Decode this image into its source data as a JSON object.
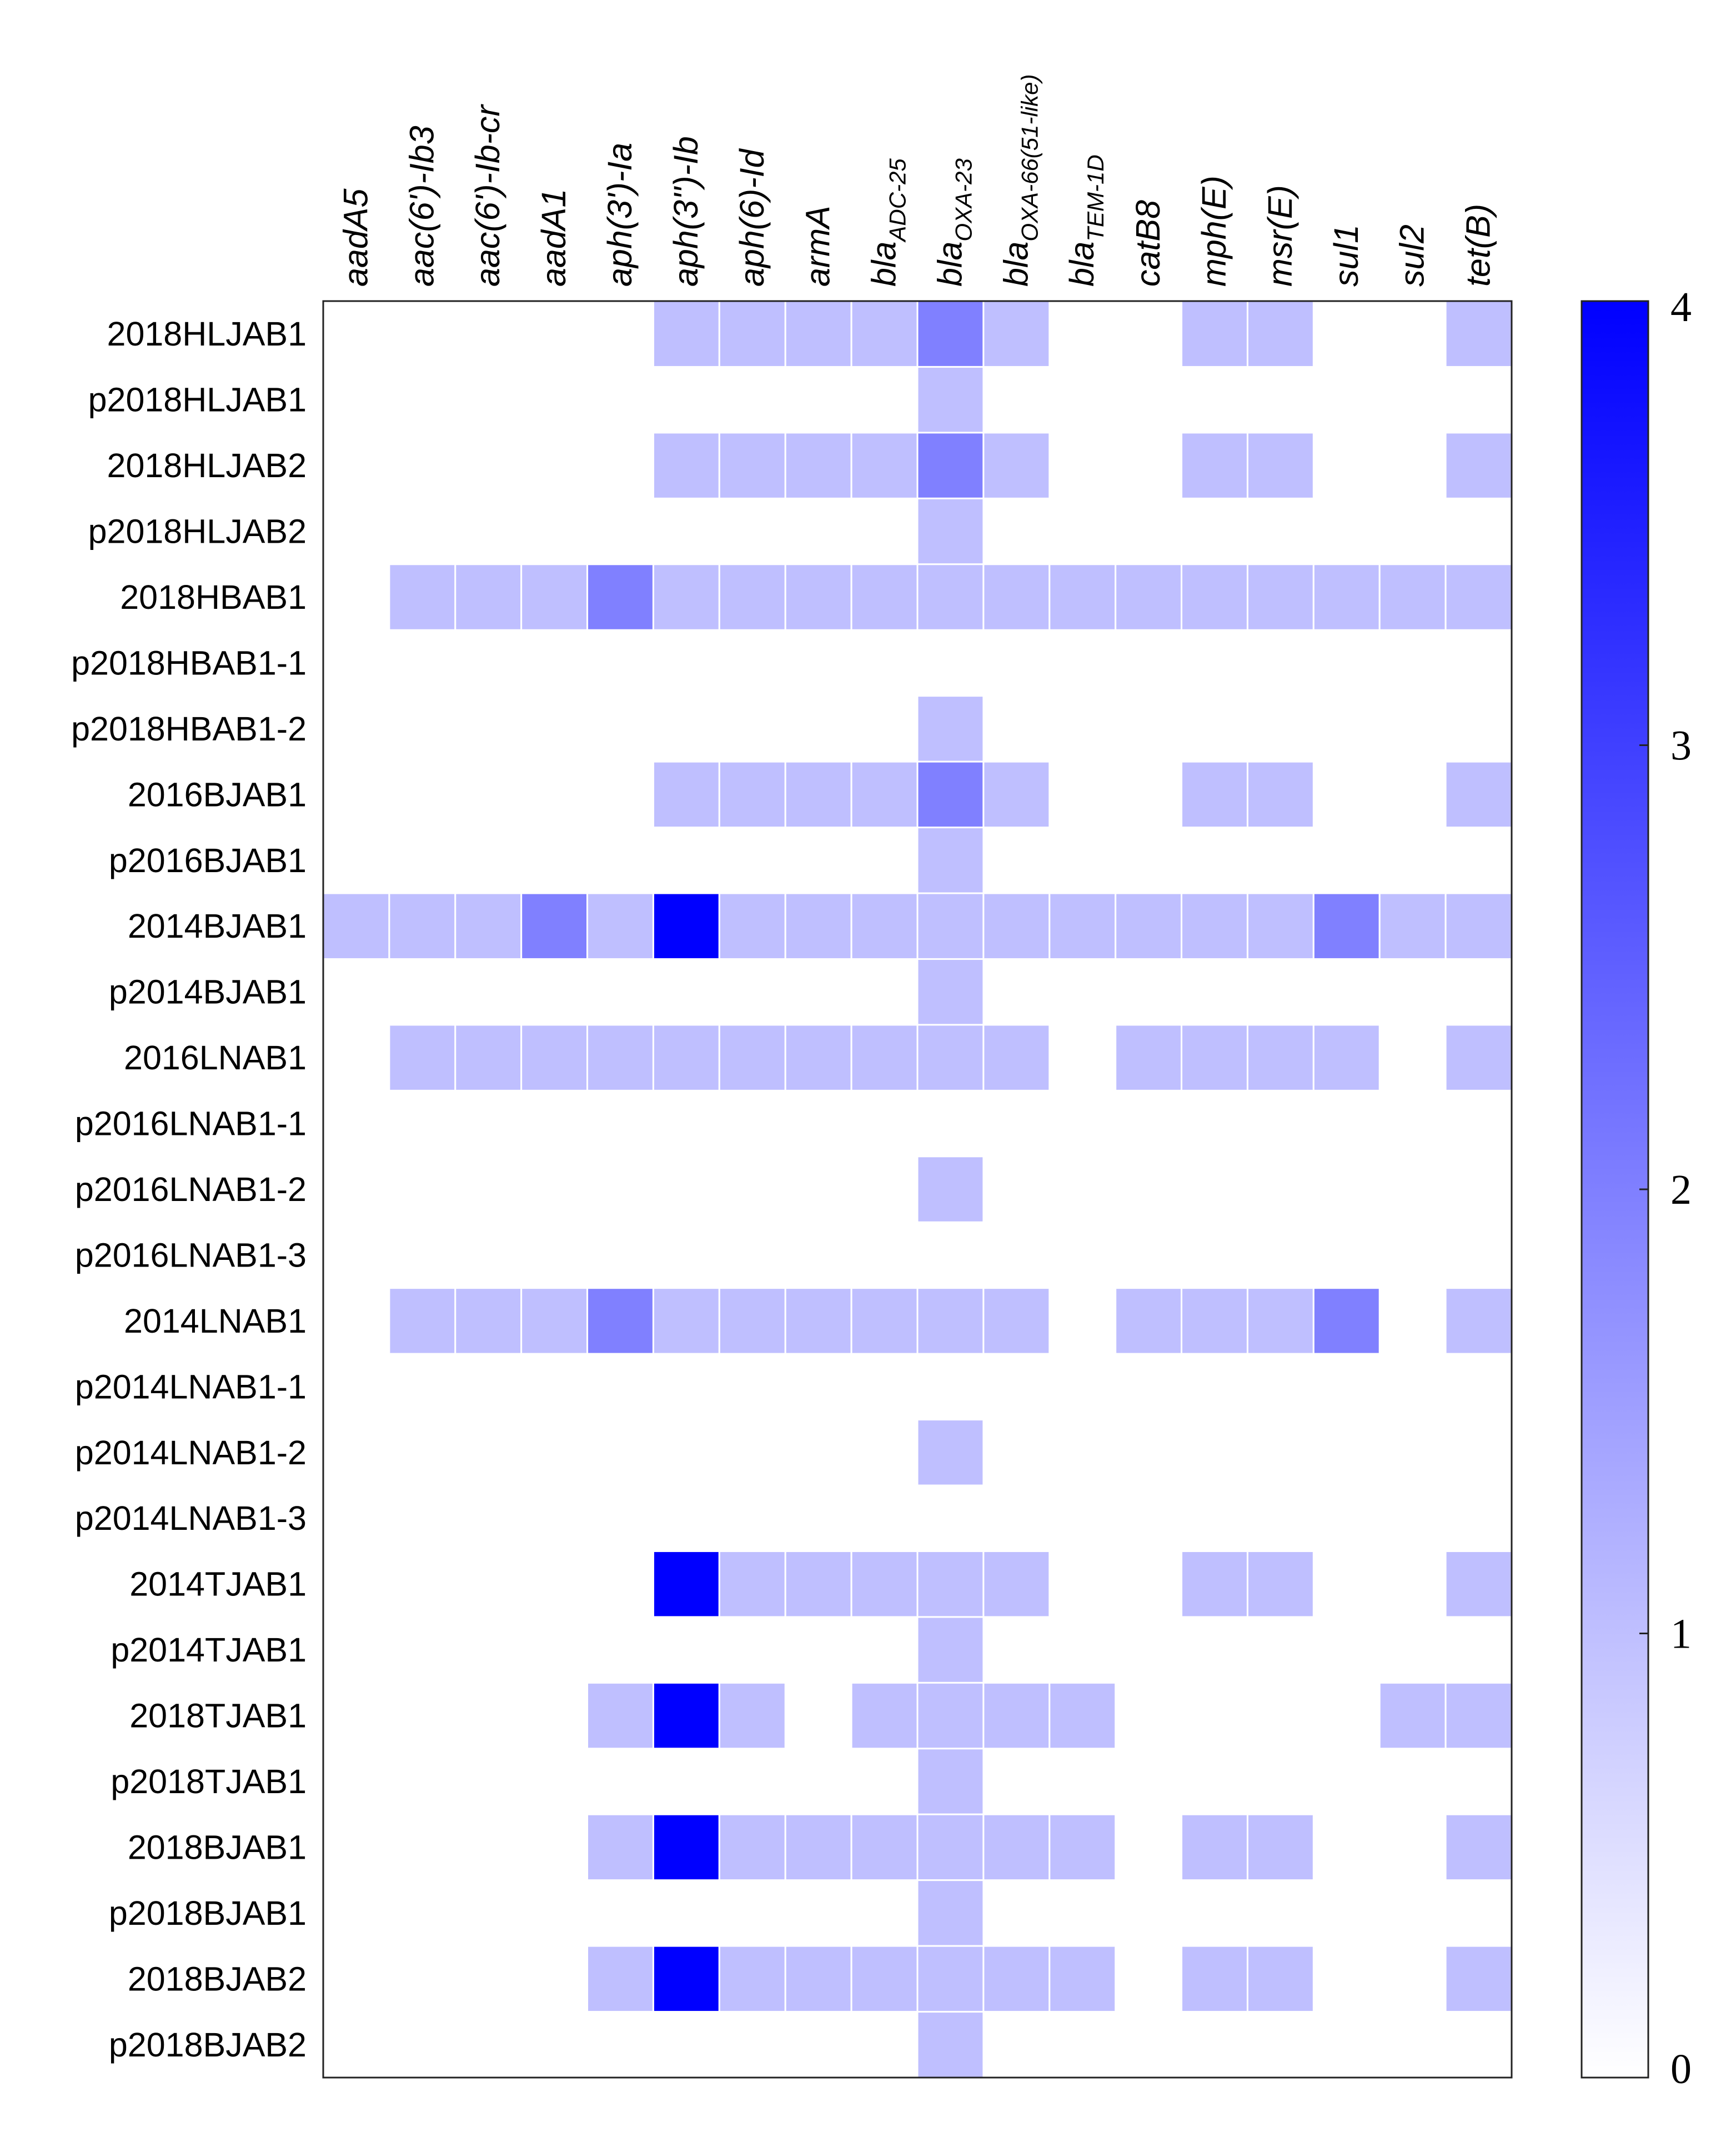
{
  "chart_data": {
    "type": "heatmap",
    "title": "",
    "xlabel": "",
    "ylabel": "",
    "columns": [
      {
        "main": "aadA5",
        "sub": ""
      },
      {
        "main": "aac(6')-Ib3",
        "sub": ""
      },
      {
        "main": "aac(6')-Ib-cr",
        "sub": ""
      },
      {
        "main": "aadA1",
        "sub": ""
      },
      {
        "main": "aph(3')-Ia",
        "sub": ""
      },
      {
        "main": "aph(3'')-Ib",
        "sub": ""
      },
      {
        "main": "aph(6)-Id",
        "sub": ""
      },
      {
        "main": "armA",
        "sub": ""
      },
      {
        "main": "bla",
        "sub": "ADC-25"
      },
      {
        "main": "bla",
        "sub": "OXA-23"
      },
      {
        "main": "bla",
        "sub": "OXA-66(51-like)"
      },
      {
        "main": "bla",
        "sub": "TEM-1D"
      },
      {
        "main": "catB8",
        "sub": ""
      },
      {
        "main": "mph(E)",
        "sub": ""
      },
      {
        "main": "msr(E)",
        "sub": ""
      },
      {
        "main": "sul1",
        "sub": ""
      },
      {
        "main": "sul2",
        "sub": ""
      },
      {
        "main": "tet(B)",
        "sub": ""
      }
    ],
    "rows": [
      "2018HLJAB1",
      "p2018HLJAB1",
      "2018HLJAB2",
      "p2018HLJAB2",
      "2018HBAB1",
      "p2018HBAB1-1",
      "p2018HBAB1-2",
      "2016BJAB1",
      "p2016BJAB1",
      "2014BJAB1",
      "p2014BJAB1",
      "2016LNAB1",
      "p2016LNAB1-1",
      "p2016LNAB1-2",
      "p2016LNAB1-3",
      "2014LNAB1",
      "p2014LNAB1-1",
      "p2014LNAB1-2",
      "p2014LNAB1-3",
      "2014TJAB1",
      "p2014TJAB1",
      "2018TJAB1",
      "p2018TJAB1",
      "2018BJAB1",
      "p2018BJAB1",
      "2018BJAB2",
      "p2018BJAB2"
    ],
    "values": [
      [
        0,
        0,
        0,
        0,
        0,
        1,
        1,
        1,
        1,
        2,
        1,
        0,
        0,
        1,
        1,
        0,
        0,
        1
      ],
      [
        0,
        0,
        0,
        0,
        0,
        0,
        0,
        0,
        0,
        1,
        0,
        0,
        0,
        0,
        0,
        0,
        0,
        0
      ],
      [
        0,
        0,
        0,
        0,
        0,
        1,
        1,
        1,
        1,
        2,
        1,
        0,
        0,
        1,
        1,
        0,
        0,
        1
      ],
      [
        0,
        0,
        0,
        0,
        0,
        0,
        0,
        0,
        0,
        1,
        0,
        0,
        0,
        0,
        0,
        0,
        0,
        0
      ],
      [
        0,
        1,
        1,
        1,
        2,
        1,
        1,
        1,
        1,
        1,
        1,
        1,
        1,
        1,
        1,
        1,
        1,
        1
      ],
      [
        0,
        0,
        0,
        0,
        0,
        0,
        0,
        0,
        0,
        0,
        0,
        0,
        0,
        0,
        0,
        0,
        0,
        0
      ],
      [
        0,
        0,
        0,
        0,
        0,
        0,
        0,
        0,
        0,
        1,
        0,
        0,
        0,
        0,
        0,
        0,
        0,
        0
      ],
      [
        0,
        0,
        0,
        0,
        0,
        1,
        1,
        1,
        1,
        2,
        1,
        0,
        0,
        1,
        1,
        0,
        0,
        1
      ],
      [
        0,
        0,
        0,
        0,
        0,
        0,
        0,
        0,
        0,
        1,
        0,
        0,
        0,
        0,
        0,
        0,
        0,
        0
      ],
      [
        1,
        1,
        1,
        2,
        1,
        4,
        1,
        1,
        1,
        1,
        1,
        1,
        1,
        1,
        1,
        2,
        1,
        1
      ],
      [
        0,
        0,
        0,
        0,
        0,
        0,
        0,
        0,
        0,
        1,
        0,
        0,
        0,
        0,
        0,
        0,
        0,
        0
      ],
      [
        0,
        1,
        1,
        1,
        1,
        1,
        1,
        1,
        1,
        1,
        1,
        0,
        1,
        1,
        1,
        1,
        0,
        1
      ],
      [
        0,
        0,
        0,
        0,
        0,
        0,
        0,
        0,
        0,
        0,
        0,
        0,
        0,
        0,
        0,
        0,
        0,
        0
      ],
      [
        0,
        0,
        0,
        0,
        0,
        0,
        0,
        0,
        0,
        1,
        0,
        0,
        0,
        0,
        0,
        0,
        0,
        0
      ],
      [
        0,
        0,
        0,
        0,
        0,
        0,
        0,
        0,
        0,
        0,
        0,
        0,
        0,
        0,
        0,
        0,
        0,
        0
      ],
      [
        0,
        1,
        1,
        1,
        2,
        1,
        1,
        1,
        1,
        1,
        1,
        0,
        1,
        1,
        1,
        2,
        0,
        1
      ],
      [
        0,
        0,
        0,
        0,
        0,
        0,
        0,
        0,
        0,
        0,
        0,
        0,
        0,
        0,
        0,
        0,
        0,
        0
      ],
      [
        0,
        0,
        0,
        0,
        0,
        0,
        0,
        0,
        0,
        1,
        0,
        0,
        0,
        0,
        0,
        0,
        0,
        0
      ],
      [
        0,
        0,
        0,
        0,
        0,
        0,
        0,
        0,
        0,
        0,
        0,
        0,
        0,
        0,
        0,
        0,
        0,
        0
      ],
      [
        0,
        0,
        0,
        0,
        0,
        4,
        1,
        1,
        1,
        1,
        1,
        0,
        0,
        1,
        1,
        0,
        0,
        1
      ],
      [
        0,
        0,
        0,
        0,
        0,
        0,
        0,
        0,
        0,
        1,
        0,
        0,
        0,
        0,
        0,
        0,
        0,
        0
      ],
      [
        0,
        0,
        0,
        0,
        1,
        4,
        1,
        0,
        1,
        1,
        1,
        1,
        0,
        0,
        0,
        0,
        1,
        1
      ],
      [
        0,
        0,
        0,
        0,
        0,
        0,
        0,
        0,
        0,
        1,
        0,
        0,
        0,
        0,
        0,
        0,
        0,
        0
      ],
      [
        0,
        0,
        0,
        0,
        1,
        4,
        1,
        1,
        1,
        1,
        1,
        1,
        0,
        1,
        1,
        0,
        0,
        1
      ],
      [
        0,
        0,
        0,
        0,
        0,
        0,
        0,
        0,
        0,
        1,
        0,
        0,
        0,
        0,
        0,
        0,
        0,
        0
      ],
      [
        0,
        0,
        0,
        0,
        1,
        4,
        1,
        1,
        1,
        1,
        1,
        1,
        0,
        1,
        1,
        0,
        0,
        1
      ],
      [
        0,
        0,
        0,
        0,
        0,
        0,
        0,
        0,
        0,
        1,
        0,
        0,
        0,
        0,
        0,
        0,
        0,
        0
      ]
    ],
    "colorbar": {
      "min": 0,
      "max": 4,
      "ticks": [
        0,
        1,
        2,
        3,
        4
      ],
      "colors": [
        "#ffffff",
        "#0000ff"
      ]
    },
    "grid": true,
    "legend": "right"
  }
}
